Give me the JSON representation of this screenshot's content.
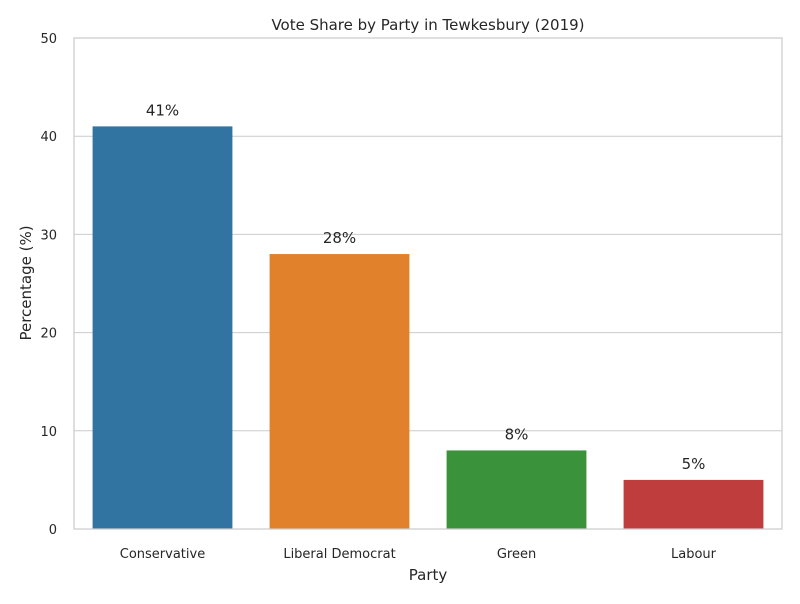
{
  "chart_data": {
    "type": "bar",
    "title": "Vote Share by Party in Tewkesbury (2019)",
    "xlabel": "Party",
    "ylabel": "Percentage (%)",
    "categories": [
      "Conservative",
      "Liberal Democrat",
      "Green",
      "Labour"
    ],
    "values": [
      41,
      28,
      8,
      5
    ],
    "value_labels": [
      "41%",
      "28%",
      "8%",
      "5%"
    ],
    "colors": [
      "#3274a1",
      "#e1812c",
      "#3a923a",
      "#c03d3e"
    ],
    "ylim": [
      0,
      50
    ],
    "yticks": [
      0,
      10,
      20,
      30,
      40,
      50
    ],
    "grid": true,
    "legend": "none"
  }
}
